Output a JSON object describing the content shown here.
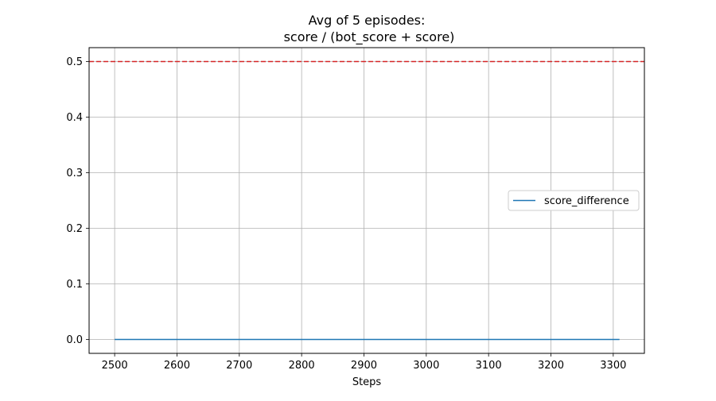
{
  "chart_data": {
    "type": "line",
    "title_line1": "Avg of 5 episodes:",
    "title_line2": "score / (bot_score + score)",
    "xlabel": "Steps",
    "ylabel": "",
    "xlim": [
      2459,
      3350
    ],
    "ylim": [
      -0.025,
      0.525
    ],
    "xticks": [
      2500,
      2600,
      2700,
      2800,
      2900,
      3000,
      3100,
      3200,
      3300
    ],
    "xtick_labels": [
      "2500",
      "2600",
      "2700",
      "2800",
      "2900",
      "3000",
      "3100",
      "3200",
      "3300"
    ],
    "yticks": [
      0.0,
      0.1,
      0.2,
      0.3,
      0.4,
      0.5
    ],
    "ytick_labels": [
      "0.0",
      "0.1",
      "0.2",
      "0.3",
      "0.4",
      "0.5"
    ],
    "grid": true,
    "legend_position": "center-right",
    "series": [
      {
        "name": "score_difference",
        "color": "#1f77b4",
        "x": [
          2500,
          3310
        ],
        "y": [
          0.0,
          0.0
        ]
      }
    ],
    "reference_line": {
      "y": 0.5,
      "color": "#d62728",
      "style": "dashed"
    }
  }
}
